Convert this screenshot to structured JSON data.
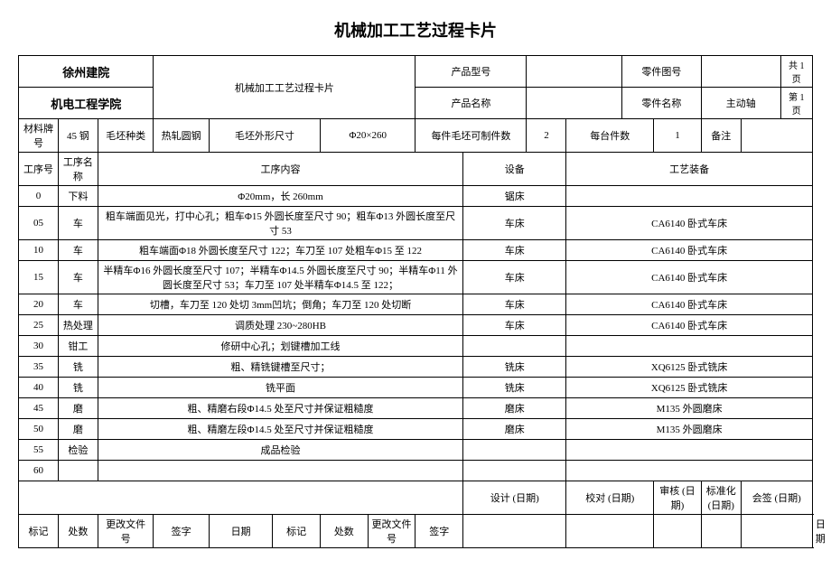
{
  "title": "机械加工工艺过程卡片",
  "header": {
    "org1": "徐州建院",
    "org2": "机电工程学院",
    "center_title": "机械加工工艺过程卡片",
    "product_model_label": "产品型号",
    "product_model": "",
    "part_drawing_label": "零件图号",
    "part_drawing": "",
    "product_name_label": "产品名称",
    "product_name": "",
    "part_name_label": "零件名称",
    "part_name": "主动轴",
    "page_total_label": "共 1 页",
    "page_num_label": "第 1 页"
  },
  "material_row": {
    "material_grade_label": "材料牌号",
    "material_grade": "45 钢",
    "blank_type_label": "毛坯种类",
    "blank_type": "热轧圆钢",
    "blank_size_label": "毛坯外形尺寸",
    "blank_size": "Φ20×260",
    "per_blank_label": "每件毛坯可制件数",
    "per_blank": "2",
    "per_unit_label": "每台件数",
    "per_unit": "1",
    "remark_label": "备注",
    "remark": ""
  },
  "col_headers": {
    "seq_no": "工序号",
    "seq_name": "工序名称",
    "content": "工序内容",
    "equipment": "设备",
    "tooling": "工艺装备"
  },
  "rows": [
    {
      "no": "0",
      "name": "下料",
      "content": "Φ20mm，长 260mm",
      "equip": "锯床",
      "tool": ""
    },
    {
      "no": "05",
      "name": "车",
      "content": "粗车端面见光，打中心孔；粗车Φ15 外圆长度至尺寸 90；粗车Φ13 外圆长度至尺寸 53",
      "equip": "车床",
      "tool": "CA6140 卧式车床"
    },
    {
      "no": "10",
      "name": "车",
      "content": "粗车端面Φ18 外圆长度至尺寸 122；车刀至 107 处粗车Φ15 至 122",
      "equip": "车床",
      "tool": "CA6140 卧式车床"
    },
    {
      "no": "15",
      "name": "车",
      "content": "半精车Φ16 外圆长度至尺寸 107；半精车Φ14.5 外圆长度至尺寸 90；半精车Φ11 外圆长度至尺寸 53；车刀至 107 处半精车Φ14.5 至 122；",
      "equip": "车床",
      "tool": "CA6140 卧式车床"
    },
    {
      "no": "20",
      "name": "车",
      "content": "切槽，车刀至 120 处切 3mm凹坑；倒角；车刀至 120 处切断",
      "equip": "车床",
      "tool": "CA6140 卧式车床"
    },
    {
      "no": "25",
      "name": "热处理",
      "content": "调质处理 230~280HB",
      "equip": "车床",
      "tool": "CA6140 卧式车床"
    },
    {
      "no": "30",
      "name": "钳工",
      "content": "修研中心孔；划键槽加工线",
      "equip": "",
      "tool": ""
    },
    {
      "no": "35",
      "name": "铣",
      "content": "粗、精铣键槽至尺寸；",
      "equip": "铣床",
      "tool": "XQ6125 卧式铣床"
    },
    {
      "no": "40",
      "name": "铣",
      "content": "铣平面",
      "equip": "铣床",
      "tool": "XQ6125 卧式铣床"
    },
    {
      "no": "45",
      "name": "磨",
      "content": "粗、精磨右段Φ14.5 处至尺寸并保证粗糙度",
      "equip": "磨床",
      "tool": "M135 外圆磨床"
    },
    {
      "no": "50",
      "name": "磨",
      "content": "粗、精磨左段Φ14.5 处至尺寸并保证粗糙度",
      "equip": "磨床",
      "tool": "M135 外圆磨床"
    },
    {
      "no": "55",
      "name": "检验",
      "content": "成品检验",
      "equip": "",
      "tool": ""
    },
    {
      "no": "60",
      "name": "",
      "content": "",
      "equip": "",
      "tool": ""
    }
  ],
  "footer": {
    "design": "设计 (日期)",
    "proof": "校对 (日期)",
    "review": "审核 (日期)",
    "standard": "标准化 (日期)",
    "sign": "会签 (日期)",
    "mark": "标记",
    "count": "处数",
    "change_doc": "更改文件号",
    "signature": "签字",
    "date": "日期"
  }
}
